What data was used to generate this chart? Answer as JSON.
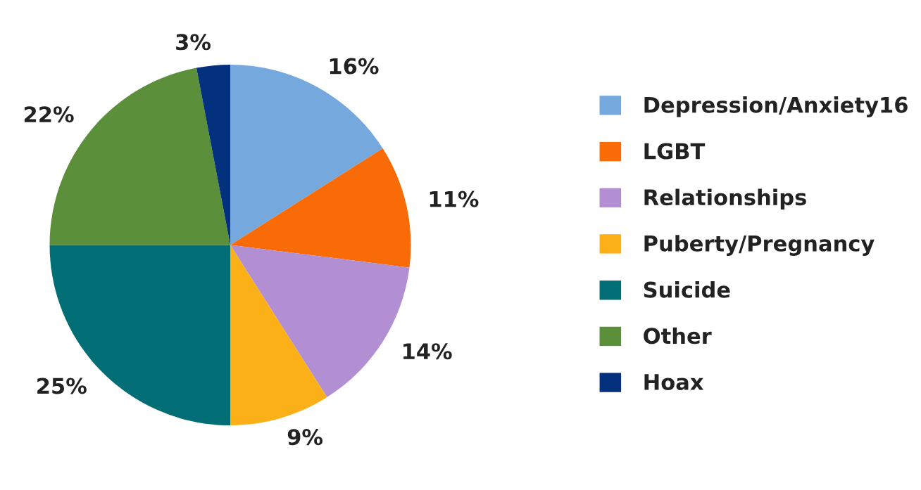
{
  "chart_data": {
    "type": "pie",
    "categories": [
      "Depression/Anxiety16",
      "LGBT",
      "Relationships",
      "Puberty/Pregnancy",
      "Suicide",
      "Other",
      "Hoax"
    ],
    "values": [
      16,
      11,
      14,
      9,
      25,
      22,
      3
    ],
    "colors": [
      "#75a8dc",
      "#f96b06",
      "#b28fd3",
      "#fbb017",
      "#006e74",
      "#5b8f3a",
      "#03317e"
    ],
    "value_labels": [
      "16%",
      "11%",
      "14%",
      "9%",
      "25%",
      "22%",
      "3%"
    ],
    "legend": "right"
  }
}
